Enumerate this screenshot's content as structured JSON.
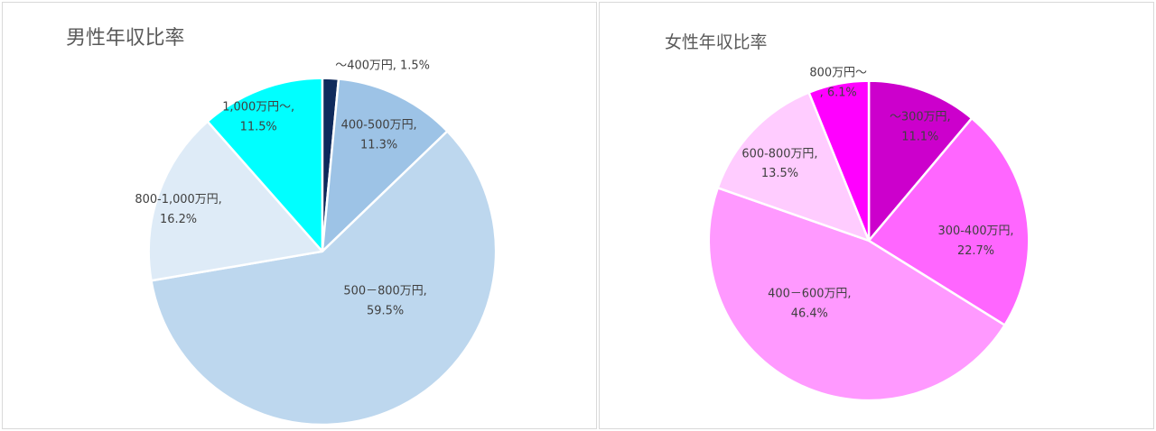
{
  "chart_data": [
    {
      "type": "pie",
      "title": "男性年収比率",
      "slices": [
        {
          "label": "～400万円",
          "value": 1.5,
          "value_label": "1.5%",
          "color": "#0f2a5c"
        },
        {
          "label": "400-500万円",
          "value": 11.3,
          "value_label": "11.3%",
          "color": "#9dc3e6"
        },
        {
          "label": "500－800万円",
          "value": 59.5,
          "value_label": "59.5%",
          "color": "#bdd7ee"
        },
        {
          "label": "800-1,000万円",
          "value": 16.2,
          "value_label": "16.2%",
          "color": "#deebf7"
        },
        {
          "label": "1,000万円～",
          "value": 11.5,
          "value_label": "11.5%",
          "color": "#00ffff"
        }
      ]
    },
    {
      "type": "pie",
      "title": "女性年収比率",
      "slices": [
        {
          "label": "～300万円",
          "value": 11.1,
          "value_label": "11.1%",
          "color": "#cc00cc"
        },
        {
          "label": "300-400万円",
          "value": 22.7,
          "value_label": "22.7%",
          "color": "#ff66ff"
        },
        {
          "label": "400－600万円",
          "value": 46.4,
          "value_label": "46.4%",
          "color": "#ff99ff"
        },
        {
          "label": "600-800万円",
          "value": 13.5,
          "value_label": "13.5%",
          "color": "#ffccff"
        },
        {
          "label": "800万円～",
          "value": 6.1,
          "value_label": "6.1%",
          "color": "#ff00ff"
        }
      ]
    }
  ]
}
